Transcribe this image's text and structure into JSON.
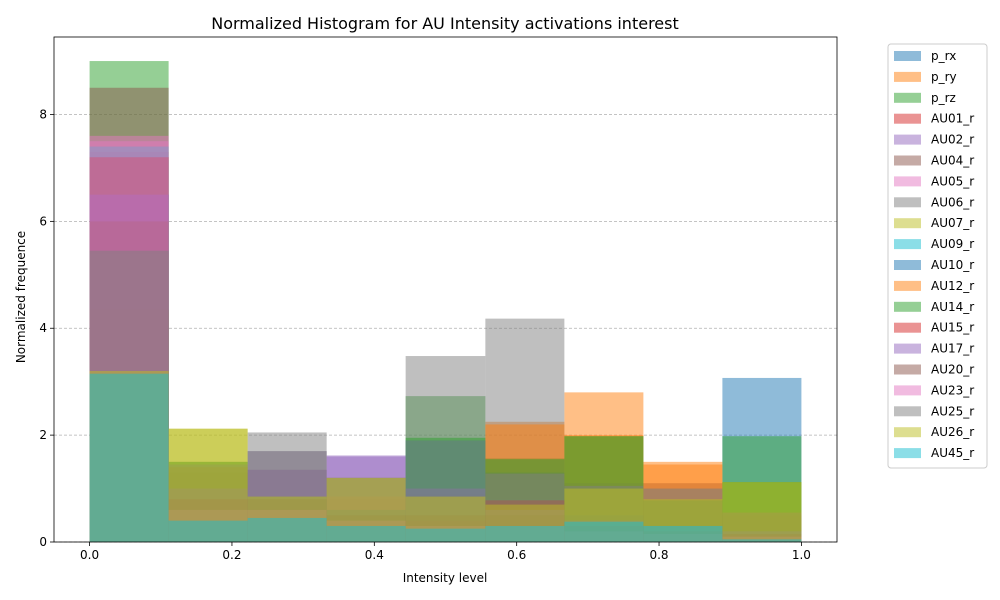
{
  "chart_data": {
    "type": "bar",
    "title": "Normalized Histogram for AU Intensity activations interest",
    "xlabel": "Intensity level",
    "ylabel": "Normalized frequence",
    "xlim": [
      -0.05,
      1.05
    ],
    "ylim": [
      0,
      9.45
    ],
    "xticks": [
      "0.0",
      "0.2",
      "0.4",
      "0.6",
      "0.8",
      "1.0"
    ],
    "yticks": [
      "0",
      "2",
      "4",
      "6",
      "8"
    ],
    "grid": "y-dashed",
    "legend_position": "outside-right",
    "bin_edges": [
      0.0,
      0.111,
      0.222,
      0.333,
      0.444,
      0.556,
      0.667,
      0.778,
      0.889,
      1.0
    ],
    "series": [
      {
        "name": "p_rx",
        "color": "#1f77b4",
        "values": [
          6.5,
          0.5,
          0.5,
          0.3,
          0.3,
          0.3,
          0.2,
          0.2,
          3.07
        ]
      },
      {
        "name": "p_ry",
        "color": "#ff7f0e",
        "values": [
          4.3,
          1.3,
          0.8,
          0.8,
          0.8,
          2.25,
          2.8,
          1.5,
          0.5
        ]
      },
      {
        "name": "p_rz",
        "color": "#2ca02c",
        "values": [
          9.0,
          0.5,
          0.5,
          0.3,
          2.73,
          1.57,
          1.98,
          0.78,
          1.98
        ]
      },
      {
        "name": "AU01_r",
        "color": "#d62728",
        "values": [
          7.3,
          1.0,
          0.8,
          0.5,
          0.5,
          0.78,
          0.45,
          0.3,
          0.15
        ]
      },
      {
        "name": "AU02_r",
        "color": "#9467bd",
        "values": [
          7.15,
          1.0,
          1.7,
          1.62,
          1.0,
          0.8,
          0.5,
          0.3,
          0.2
        ]
      },
      {
        "name": "AU04_r",
        "color": "#8c564b",
        "values": [
          8.5,
          1.3,
          1.35,
          1.2,
          0.9,
          0.55,
          0.4,
          1.1,
          0.5
        ]
      },
      {
        "name": "AU05_r",
        "color": "#e377c2",
        "values": [
          7.6,
          0.7,
          0.6,
          0.4,
          0.3,
          0.3,
          0.2,
          0.15,
          0.1
        ]
      },
      {
        "name": "AU06_r",
        "color": "#7f7f7f",
        "values": [
          7.2,
          1.5,
          2.05,
          1.2,
          3.48,
          4.18,
          1.1,
          1.0,
          1.12
        ]
      },
      {
        "name": "AU07_r",
        "color": "#bcbd22",
        "values": [
          5.4,
          2.12,
          0.85,
          1.2,
          0.85,
          0.7,
          1.0,
          0.8,
          1.12
        ]
      },
      {
        "name": "AU09_r",
        "color": "#17becf",
        "values": [
          7.4,
          0.5,
          0.5,
          0.3,
          0.3,
          0.3,
          0.4,
          0.3,
          0.2
        ]
      },
      {
        "name": "AU10_r",
        "color": "#1f77b4",
        "values": [
          6.5,
          0.6,
          0.8,
          0.6,
          1.9,
          1.3,
          0.5,
          0.3,
          0.2
        ]
      },
      {
        "name": "AU12_r",
        "color": "#ff7f0e",
        "values": [
          3.2,
          1.4,
          0.85,
          0.85,
          0.85,
          2.2,
          2.0,
          1.45,
          0.55
        ]
      },
      {
        "name": "AU14_r",
        "color": "#2ca02c",
        "values": [
          4.35,
          1.5,
          0.85,
          0.6,
          1.95,
          1.55,
          1.98,
          0.78,
          1.12
        ]
      },
      {
        "name": "AU15_r",
        "color": "#d62728",
        "values": [
          7.2,
          0.8,
          0.6,
          0.4,
          0.4,
          0.78,
          0.3,
          0.2,
          0.12
        ]
      },
      {
        "name": "AU17_r",
        "color": "#9467bd",
        "values": [
          6.5,
          1.0,
          1.35,
          1.6,
          1.0,
          0.6,
          0.4,
          0.3,
          0.2
        ]
      },
      {
        "name": "AU20_r",
        "color": "#8c564b",
        "values": [
          6.0,
          0.8,
          0.8,
          0.5,
          0.5,
          0.5,
          0.3,
          0.2,
          0.15
        ]
      },
      {
        "name": "AU23_r",
        "color": "#e377c2",
        "values": [
          7.5,
          0.6,
          0.6,
          0.4,
          0.3,
          0.3,
          0.2,
          0.15,
          0.1
        ]
      },
      {
        "name": "AU25_r",
        "color": "#7f7f7f",
        "values": [
          5.45,
          1.45,
          1.7,
          1.2,
          1.9,
          1.28,
          1.05,
          1.0,
          0.55
        ]
      },
      {
        "name": "AU26_r",
        "color": "#bcbd22",
        "values": [
          3.2,
          2.12,
          0.85,
          1.2,
          0.85,
          0.7,
          1.0,
          0.8,
          1.12
        ]
      },
      {
        "name": "AU45_r",
        "color": "#17becf",
        "values": [
          3.15,
          0.4,
          0.45,
          0.3,
          0.25,
          0.3,
          0.38,
          0.3,
          0.05
        ]
      }
    ]
  }
}
